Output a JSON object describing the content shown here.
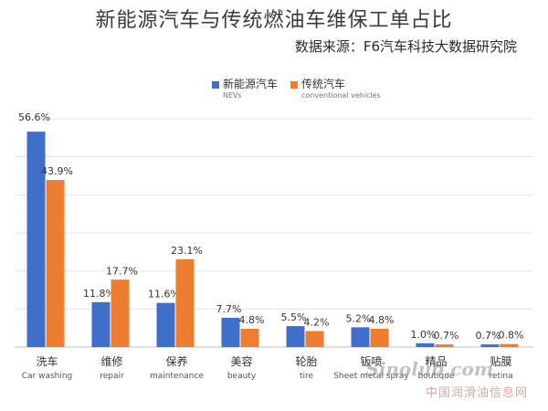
{
  "chart_data": {
    "type": "bar",
    "title": "新能源汽车与传统燃油车维保工单占比",
    "subtitle": "数据来源：F6汽车科技大数据研究院",
    "categories": [
      {
        "cn": "洗车",
        "en": "Car washing"
      },
      {
        "cn": "维修",
        "en": "repair"
      },
      {
        "cn": "保养",
        "en": "maintenance"
      },
      {
        "cn": "美容",
        "en": "beauty"
      },
      {
        "cn": "轮胎",
        "en": "tire"
      },
      {
        "cn": "钣喷",
        "en": "Sheet metal spray"
      },
      {
        "cn": "精品",
        "en": "boutique"
      },
      {
        "cn": "贴膜",
        "en": "retina"
      }
    ],
    "series": [
      {
        "name": "新能源汽车",
        "name_en": "NEVs",
        "color": "#3f6fc8",
        "values": [
          56.6,
          11.8,
          11.6,
          7.7,
          5.5,
          5.2,
          1.0,
          0.7
        ],
        "labels": [
          "56.6%",
          "11.8%",
          "11.6%",
          "7.7%",
          "5.5%",
          "5.2%",
          "1.0%",
          "0.7%"
        ]
      },
      {
        "name": "传统汽车",
        "name_en": "conventional vehicles",
        "color": "#ee7d31",
        "values": [
          43.9,
          17.7,
          23.1,
          4.8,
          4.2,
          4.8,
          0.7,
          0.8
        ],
        "labels": [
          "43.9%",
          "17.7%",
          "23.1%",
          "4.8%",
          "4.2%",
          "4.8%",
          "0.7%",
          "0.8%"
        ]
      }
    ],
    "ylim": [
      0,
      60
    ],
    "grid": true,
    "legend_position": "top"
  },
  "watermark": {
    "logo_text": "Sinolub.com",
    "site_text": "中国润滑油信息网"
  }
}
